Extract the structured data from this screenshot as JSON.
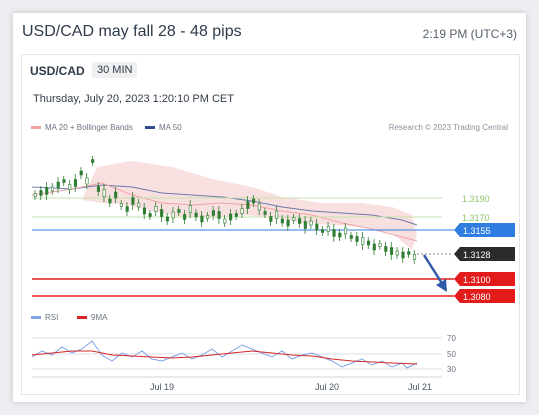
{
  "header": {
    "title": "USD/CAD may fall 28 - 48 pips",
    "time": "2:19 PM (UTC+3)"
  },
  "panel": {
    "pair": "USD/CAD",
    "interval": "30 MIN",
    "datetime": "Thursday, July 20, 2023 1:20:10 PM CET"
  },
  "legend": {
    "ma20": {
      "label": "MA 20 + Bollinger Bands",
      "color": "#f0a3a3"
    },
    "ma50": {
      "label": "MA 50",
      "color": "#2f4e8f"
    },
    "credit": "Research © 2023 Trading Central"
  },
  "rsi_legend": {
    "rsi": {
      "label": "RSI",
      "color": "#7fa4e8"
    },
    "ma9": {
      "label": "9MA",
      "color": "#d62828"
    }
  },
  "price_levels": [
    {
      "label": "1.3190",
      "style": "text",
      "color": "#8fc46b"
    },
    {
      "label": "1.3170",
      "style": "text",
      "color": "#8fc46b"
    },
    {
      "label": "1.3155",
      "style": "box",
      "color": "#2f7de1"
    },
    {
      "label": "1.3128",
      "style": "box",
      "color": "#2b2b2b"
    },
    {
      "label": "1.3100",
      "style": "box",
      "color": "#e21b1b"
    },
    {
      "label": "1.3080",
      "style": "box",
      "color": "#e21b1b"
    }
  ],
  "rsi_ticks": [
    "70",
    "50",
    "30"
  ],
  "x_ticks": [
    "Jul 19",
    "Jul 20",
    "Jul 21"
  ],
  "colors": {
    "up": "#2e7d32",
    "down": "#2e7d32",
    "arrow": "#2f5aa8"
  }
}
